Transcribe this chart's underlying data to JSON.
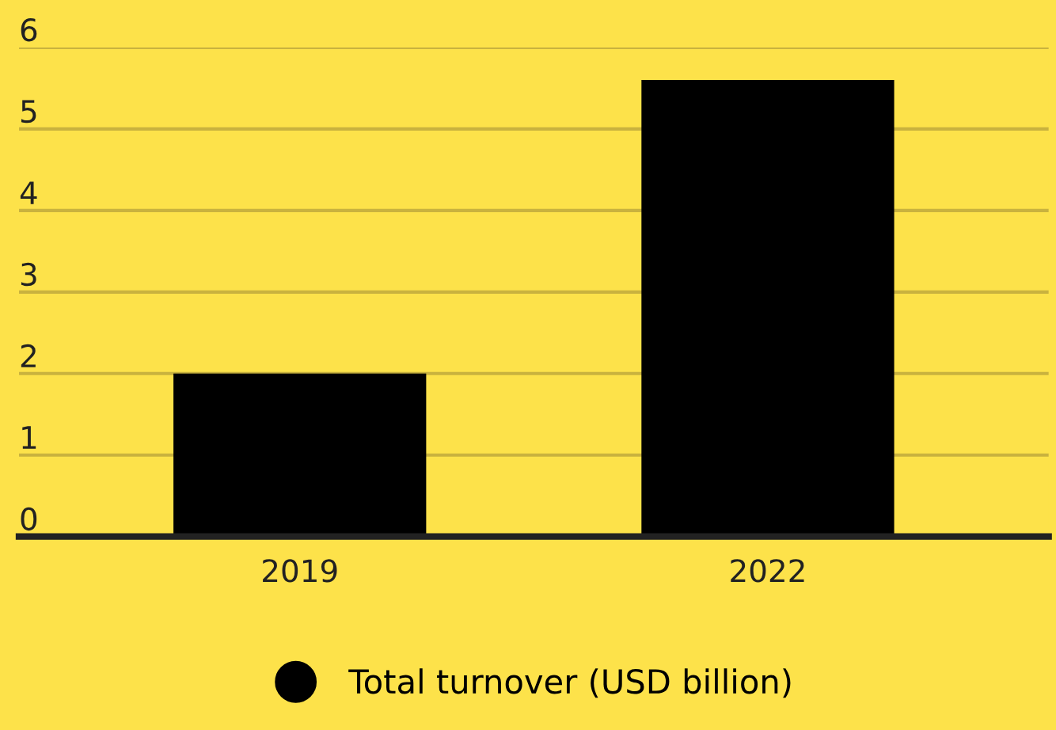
{
  "chart_data": {
    "type": "bar",
    "categories": [
      "2019",
      "2022"
    ],
    "series": [
      {
        "name": "Total turnover (USD billion)",
        "color": "#000000",
        "values": [
          2.0,
          5.6
        ]
      }
    ],
    "ylim": [
      0,
      6
    ],
    "yticks": [
      0,
      1,
      2,
      3,
      4,
      5,
      6
    ],
    "grid": "y",
    "legend": "bottom"
  }
}
